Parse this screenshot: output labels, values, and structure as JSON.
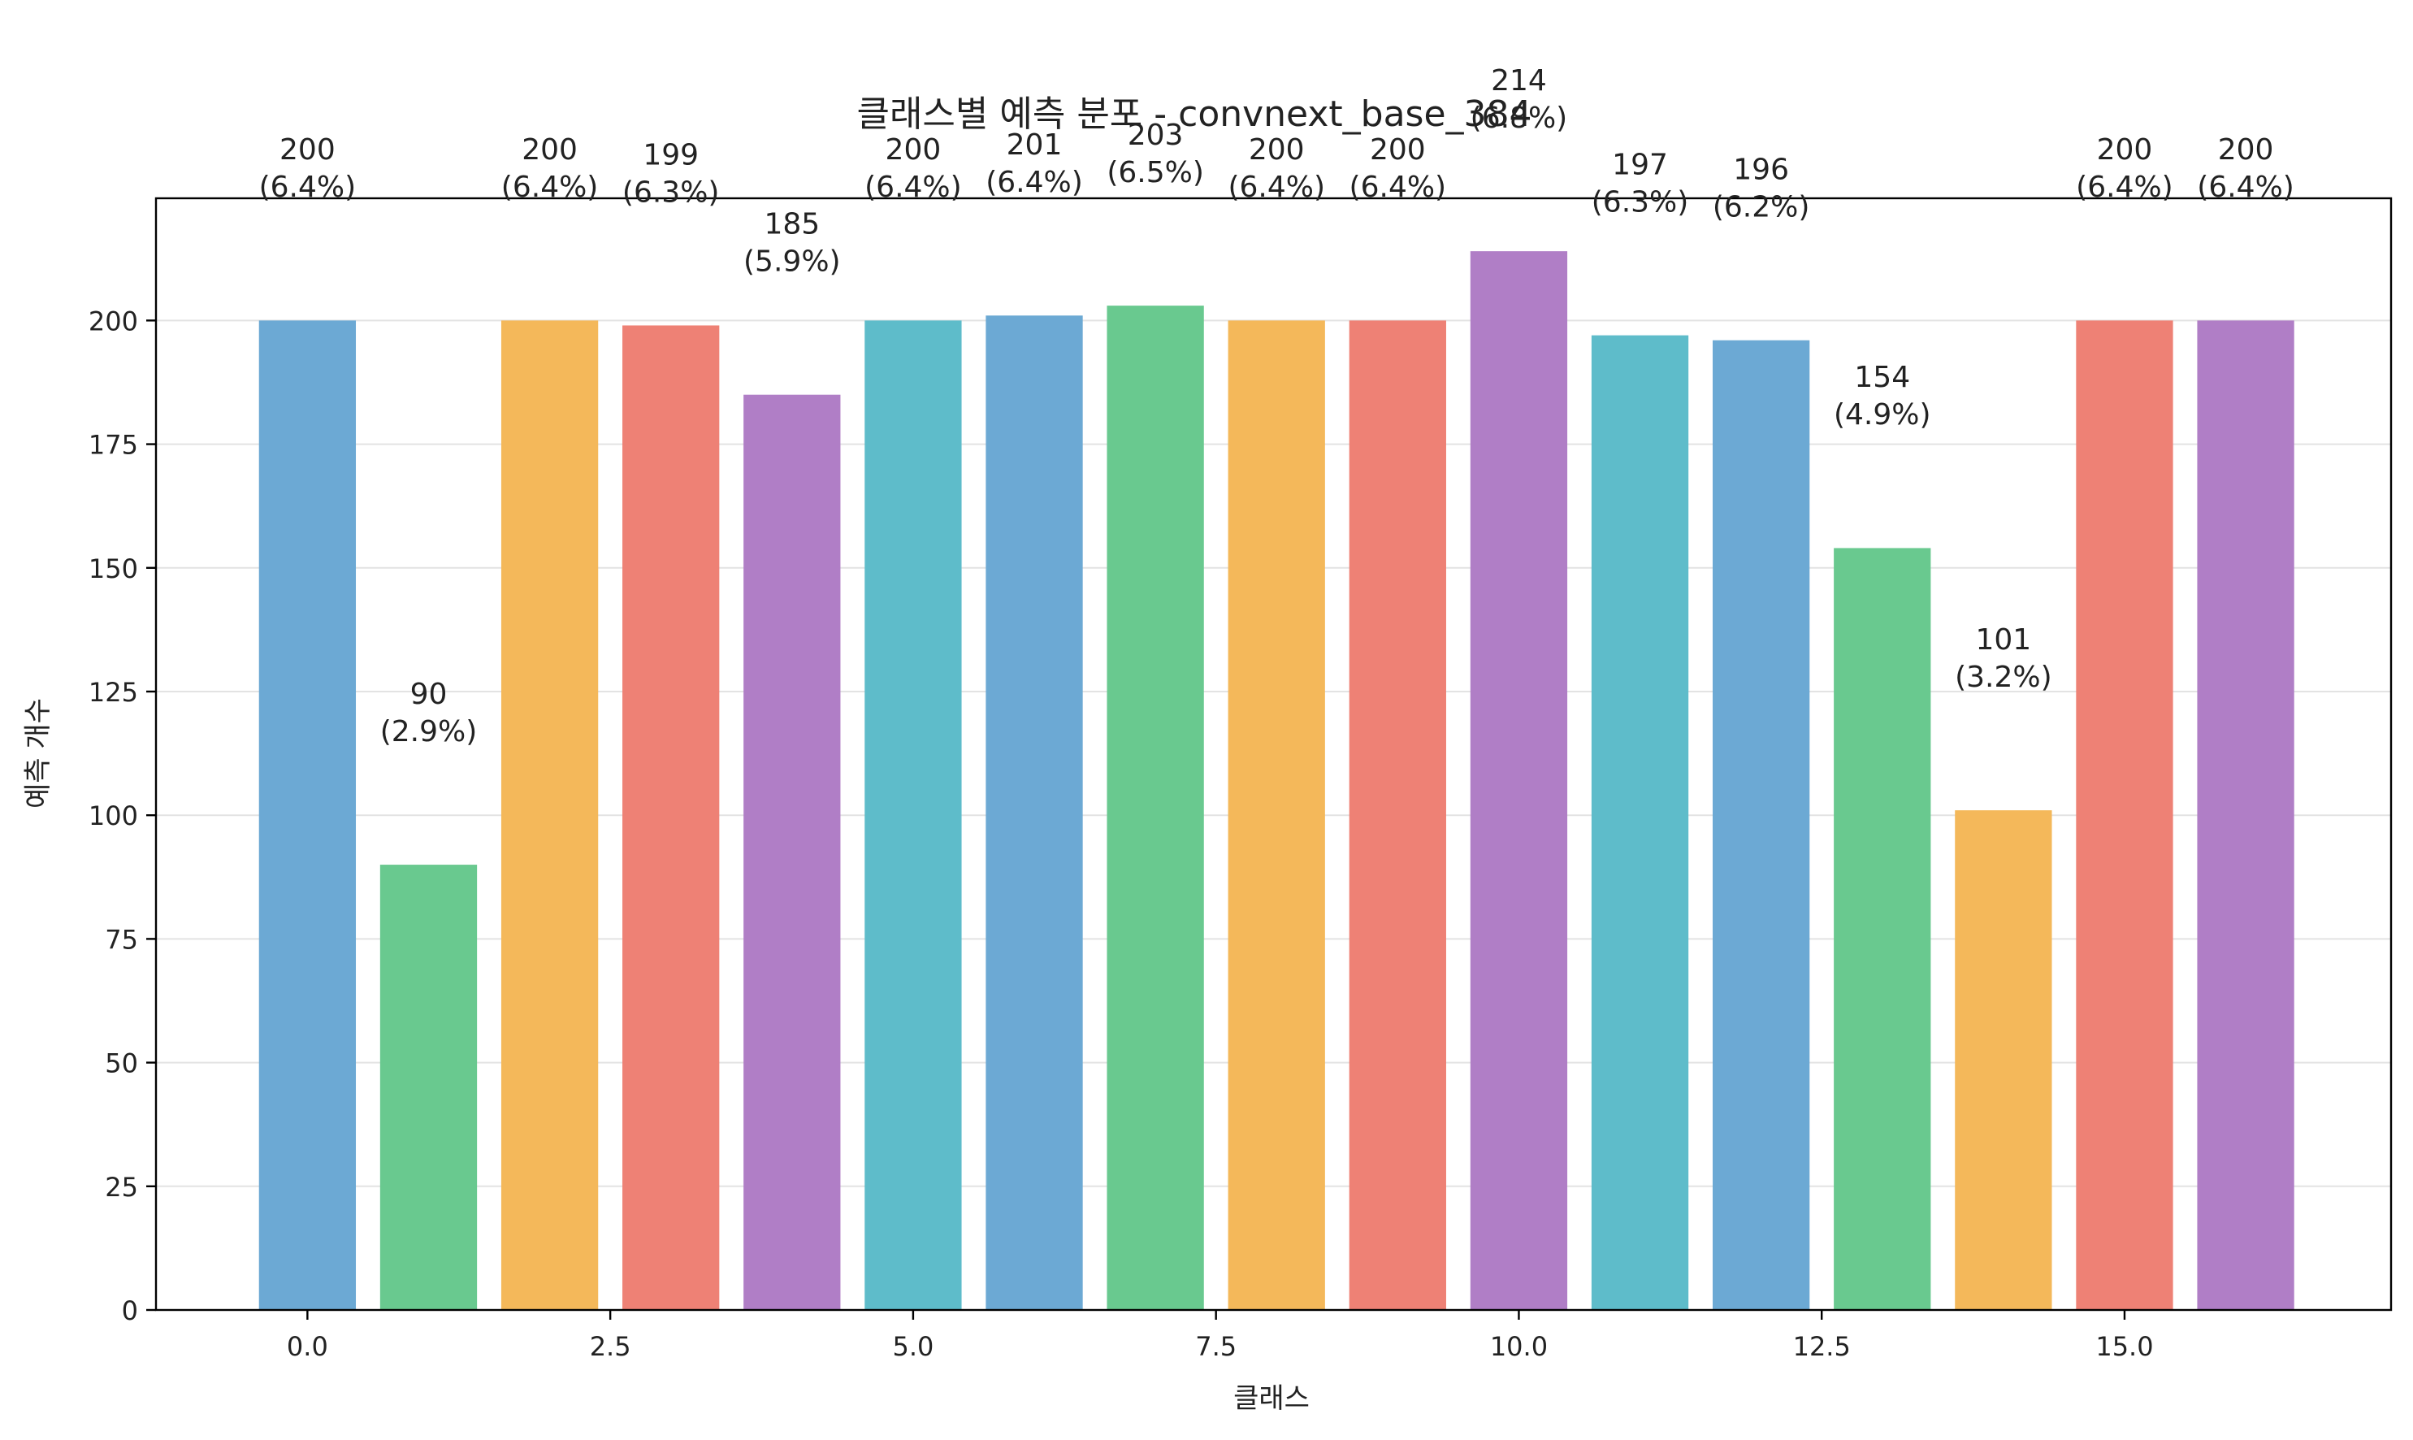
{
  "chart_data": {
    "type": "bar",
    "title": "클래스별 예측 분포 - convnext_base_384",
    "xlabel": "클래스",
    "ylabel": "예측 개수",
    "x": [
      0,
      1,
      2,
      3,
      4,
      5,
      6,
      7,
      8,
      9,
      10,
      11,
      12,
      13,
      14,
      15,
      16
    ],
    "values": [
      200,
      90,
      200,
      199,
      185,
      200,
      201,
      203,
      200,
      200,
      214,
      197,
      196,
      154,
      101,
      200,
      200
    ],
    "labels": [
      "200\n(6.4%)",
      "90\n(2.9%)",
      "200\n(6.4%)",
      "199\n(6.3%)",
      "185\n(5.9%)",
      "200\n(6.4%)",
      "201\n(6.4%)",
      "203\n(6.5%)",
      "200\n(6.4%)",
      "200\n(6.4%)",
      "214\n(6.8%)",
      "197\n(6.3%)",
      "196\n(6.2%)",
      "154\n(4.9%)",
      "101\n(3.2%)",
      "200\n(6.4%)",
      "200\n(6.4%)"
    ],
    "colors": [
      "#6ca9d4",
      "#69c98f",
      "#f4b85a",
      "#ee8175",
      "#b07ec6",
      "#5ebcca",
      "#6ca9d4",
      "#69c98f",
      "#f4b85a",
      "#ee8175",
      "#b07ec6",
      "#5ebcca",
      "#6ca9d4",
      "#69c98f",
      "#f4b85a",
      "#ee8175",
      "#b07ec6"
    ],
    "xticks": [
      "0.0",
      "2.5",
      "5.0",
      "7.5",
      "10.0",
      "12.5",
      "15.0"
    ],
    "xtick_values": [
      0,
      2.5,
      5,
      7.5,
      10,
      12.5,
      15
    ],
    "yticks": [
      "0",
      "25",
      "50",
      "75",
      "100",
      "125",
      "150",
      "175",
      "200"
    ],
    "ytick_values": [
      0,
      25,
      50,
      75,
      100,
      125,
      150,
      175,
      200
    ],
    "xlim": [
      -1.25,
      17.2
    ],
    "ylim": [
      0,
      224.7
    ],
    "grid": "y"
  }
}
